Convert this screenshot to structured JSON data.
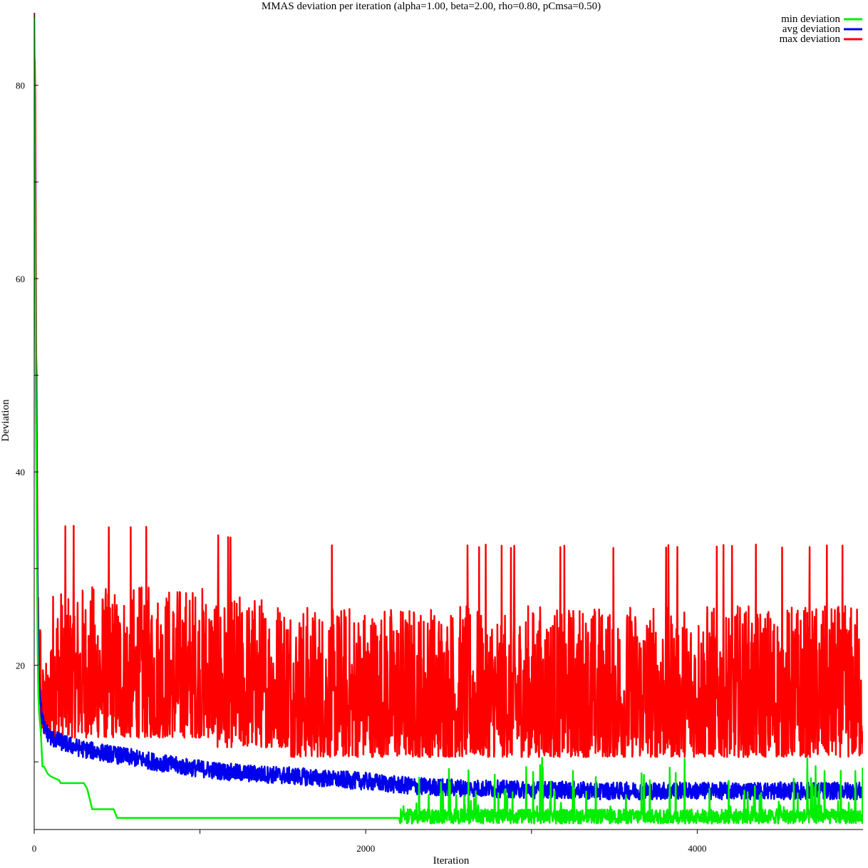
{
  "colors": {
    "min": "#00ee00",
    "avg": "#0000ee",
    "max": "#ff0000",
    "axis": "#000000",
    "background": "#ffffff"
  },
  "chart_data": {
    "type": "line",
    "title": "MMAS deviation per iteration (alpha=1.00, beta=2.00, rho=0.80, pCmsa=0.50)",
    "xlabel": "Iteration",
    "ylabel": "Deviation",
    "xlim": [
      0,
      5000
    ],
    "ylim": [
      3,
      87.5
    ],
    "x_ticks": [
      {
        "value": 0,
        "label": "0"
      },
      {
        "value": 1000,
        "label": ""
      },
      {
        "value": 2000,
        "label": "2000"
      },
      {
        "value": 3000,
        "label": ""
      },
      {
        "value": 4000,
        "label": "4000"
      }
    ],
    "y_ticks": [
      {
        "value": 10,
        "label": ""
      },
      {
        "value": 20,
        "label": "20"
      },
      {
        "value": 30,
        "label": ""
      },
      {
        "value": 40,
        "label": "40"
      },
      {
        "value": 50,
        "label": ""
      },
      {
        "value": 60,
        "label": "60"
      },
      {
        "value": 70,
        "label": ""
      },
      {
        "value": 80,
        "label": "80"
      }
    ],
    "grid": false,
    "legend_position": "top-right",
    "series": [
      {
        "name": "min deviation",
        "color": "#00ee00",
        "x": [
          0,
          5,
          10,
          15,
          20,
          25,
          30,
          40,
          50,
          60,
          80,
          100,
          150,
          160,
          200,
          300,
          320,
          350,
          480,
          500,
          1000,
          1500,
          2000,
          2200,
          2210,
          2220,
          2300,
          2400,
          2500,
          2600,
          2800,
          3000,
          3200,
          3400,
          3600,
          3800,
          4000,
          4200,
          4400,
          4600,
          4800,
          5000
        ],
        "y": [
          87,
          65,
          48,
          35,
          23,
          17,
          15,
          13,
          9.5,
          9.5,
          8.8,
          8.5,
          8.1,
          7.8,
          7.8,
          7.8,
          7.2,
          5.1,
          5.1,
          4.2,
          4.2,
          4.2,
          4.2,
          4.2,
          3.5,
          4.5,
          4.5,
          4.5,
          4.5,
          4.5,
          4.5,
          4.5,
          4.5,
          4.5,
          4.5,
          4.5,
          4.5,
          4.5,
          4.5,
          4.5,
          4.5,
          4.5
        ]
      },
      {
        "name": "avg deviation",
        "color": "#0000ee",
        "x": [
          0,
          5,
          10,
          15,
          20,
          25,
          30,
          40,
          60,
          100,
          200,
          300,
          400,
          500,
          600,
          700,
          800,
          900,
          1000,
          1100,
          1200,
          1400,
          1600,
          1800,
          2000,
          2200,
          2400,
          2600,
          2800,
          3000,
          3200,
          3400,
          3600,
          3800,
          4000,
          4200,
          4400,
          4600,
          4800,
          5000
        ],
        "y": [
          86,
          70,
          52,
          40,
          29,
          22,
          18,
          15.5,
          13.5,
          12.5,
          11.8,
          11.3,
          11,
          10.7,
          10.4,
          10.1,
          9.8,
          9.5,
          9.3,
          9.1,
          8.9,
          8.7,
          8.5,
          8.2,
          8,
          7.6,
          7.4,
          7.3,
          7.2,
          7.1,
          7.1,
          7,
          7,
          7,
          7,
          7,
          7,
          7,
          7,
          7
        ]
      },
      {
        "name": "max deviation",
        "color": "#ff0000",
        "x": [
          0,
          5,
          10,
          15,
          20,
          25,
          30,
          40,
          60,
          100,
          200,
          300,
          400,
          500,
          600,
          700,
          800,
          900,
          1000,
          1100,
          1200,
          1400,
          1600,
          1800,
          2000,
          2200,
          2400,
          2600,
          2800,
          3000,
          3200,
          3400,
          3600,
          3800,
          4000,
          4200,
          4400,
          4600,
          4800,
          5000
        ],
        "y": [
          87,
          80,
          60,
          45,
          30,
          24,
          22,
          21,
          20,
          20,
          20,
          20,
          20,
          20,
          20,
          20,
          20,
          20,
          20,
          20,
          20,
          20,
          20,
          20,
          20,
          20,
          20,
          20,
          20,
          20,
          20,
          20,
          20,
          20,
          20,
          20,
          20,
          20,
          20,
          20
        ]
      }
    ]
  }
}
